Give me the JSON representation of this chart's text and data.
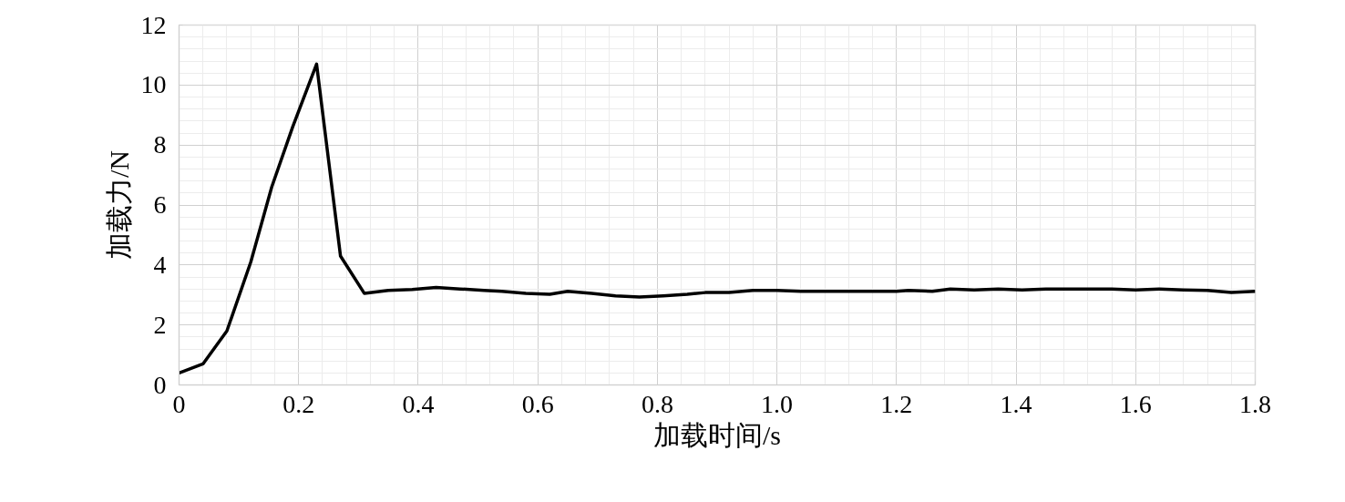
{
  "chart_data": {
    "type": "line",
    "xlabel": "加载时间/s",
    "ylabel": "加载力/N",
    "x": [
      0,
      0.04,
      0.08,
      0.12,
      0.155,
      0.19,
      0.23,
      0.27,
      0.31,
      0.35,
      0.39,
      0.43,
      0.47,
      0.51,
      0.54,
      0.58,
      0.62,
      0.65,
      0.69,
      0.73,
      0.77,
      0.81,
      0.85,
      0.88,
      0.92,
      0.96,
      1.0,
      1.04,
      1.08,
      1.12,
      1.16,
      1.2,
      1.22,
      1.26,
      1.29,
      1.33,
      1.37,
      1.41,
      1.45,
      1.49,
      1.52,
      1.56,
      1.6,
      1.64,
      1.68,
      1.72,
      1.76,
      1.8
    ],
    "series": [
      {
        "color": "#000000",
        "values": [
          0.4,
          0.7,
          1.8,
          4.1,
          6.6,
          8.6,
          10.7,
          4.3,
          3.05,
          3.15,
          3.18,
          3.25,
          3.2,
          3.15,
          3.12,
          3.05,
          3.02,
          3.12,
          3.05,
          2.97,
          2.93,
          2.97,
          3.02,
          3.08,
          3.08,
          3.15,
          3.15,
          3.12,
          3.12,
          3.12,
          3.12,
          3.12,
          3.15,
          3.12,
          3.2,
          3.17,
          3.2,
          3.17,
          3.2,
          3.2,
          3.2,
          3.2,
          3.17,
          3.2,
          3.17,
          3.15,
          3.08,
          3.12
        ]
      }
    ],
    "xlim": [
      0,
      1.8
    ],
    "ylim": [
      0,
      12
    ],
    "xticks": [
      0,
      {
        "value": 0.2,
        "label": "0.2"
      },
      {
        "value": 0.4,
        "label": "0.4"
      },
      {
        "value": 0.6,
        "label": "0.6"
      },
      {
        "value": 0.8,
        "label": "0.8"
      },
      {
        "value": 1.0,
        "label": "1.0"
      },
      {
        "value": 1.2,
        "label": "1.2"
      },
      {
        "value": 1.4,
        "label": "1.4"
      },
      {
        "value": 1.6,
        "label": "1.6"
      },
      {
        "value": 1.8,
        "label": "1.8"
      }
    ],
    "yticks": [
      0,
      2,
      4,
      6,
      8,
      10,
      12
    ],
    "grid": true,
    "marker": "none",
    "line_style": "solid"
  }
}
